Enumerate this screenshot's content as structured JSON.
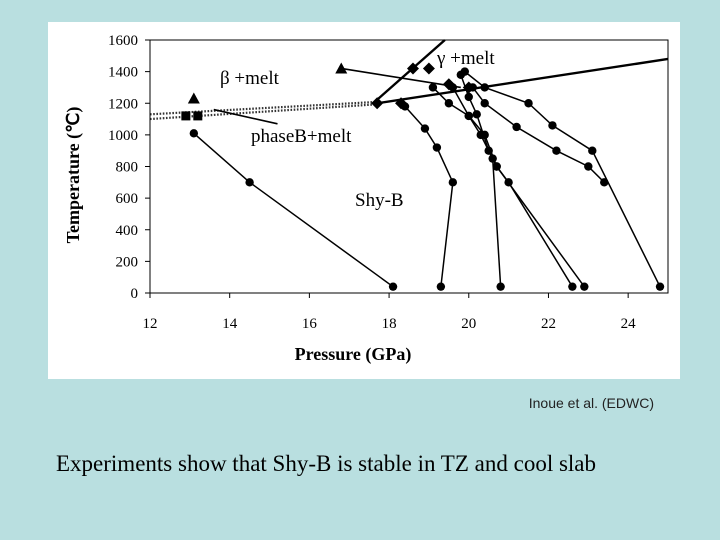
{
  "chart_data": {
    "type": "scatter",
    "title": "",
    "xlabel": "Pressure (GPa)",
    "ylabel": "Temperature (℃)",
    "xlim": [
      12,
      25
    ],
    "ylim": [
      0,
      1600
    ],
    "x_ticks": [
      "12",
      "14",
      "16",
      "18",
      "20",
      "22",
      "24"
    ],
    "y_ticks": [
      "0",
      "200",
      "400",
      "600",
      "800",
      "1000",
      "1200",
      "1400",
      "1600"
    ],
    "region_labels": {
      "beta_melt": "β +melt",
      "gamma_melt": "γ +melt",
      "phaseB_melt": "phaseB+melt",
      "shy_b": "Shy-B"
    },
    "series": [
      {
        "name": "path-1",
        "marker": "circle",
        "x": [
          13.1,
          14.5,
          18.1
        ],
        "y": [
          1010,
          700,
          40
        ]
      },
      {
        "name": "path-2",
        "marker": "circle",
        "x": [
          18.4,
          18.9,
          19.2,
          19.6,
          19.3
        ],
        "y": [
          1180,
          1040,
          920,
          700,
          40
        ]
      },
      {
        "name": "path-3",
        "marker": "circle",
        "x": [
          19.1,
          19.5,
          20.0,
          20.3,
          20.6,
          20.8
        ],
        "y": [
          1300,
          1200,
          1120,
          1000,
          850,
          40
        ]
      },
      {
        "name": "path-4",
        "marker": "circle",
        "x": [
          19.6,
          20.0,
          20.4,
          20.7,
          21.0,
          22.6
        ],
        "y": [
          1300,
          1120,
          1000,
          800,
          700,
          40
        ]
      },
      {
        "name": "path-5",
        "marker": "circle",
        "x": [
          19.8,
          20.0,
          20.2,
          20.5,
          20.7,
          22.9
        ],
        "y": [
          1380,
          1240,
          1130,
          900,
          800,
          40
        ]
      },
      {
        "name": "path-6",
        "marker": "circle",
        "x": [
          19.9,
          20.4,
          21.5,
          22.1,
          23.1,
          24.8
        ],
        "y": [
          1400,
          1300,
          1200,
          1060,
          900,
          40
        ]
      },
      {
        "name": "path-7",
        "marker": "circle",
        "x": [
          20.1,
          20.4,
          21.2,
          22.2,
          23.0,
          23.4
        ],
        "y": [
          1300,
          1200,
          1050,
          900,
          800,
          700
        ]
      },
      {
        "name": "phase-B-melt-points",
        "marker": "square",
        "x": [
          12.9,
          13.2
        ],
        "y": [
          1120,
          1120
        ]
      },
      {
        "name": "beta-melt-points",
        "marker": "triangle",
        "x": [
          13.1,
          16.8
        ],
        "y": [
          1230,
          1420
        ]
      },
      {
        "name": "gamma-melt-points",
        "marker": "diamond",
        "x": [
          17.7,
          18.3,
          18.6,
          19.0,
          19.5,
          20.0
        ],
        "y": [
          1200,
          1200,
          1420,
          1420,
          1320,
          1300
        ]
      }
    ],
    "boundaries": [
      {
        "name": "upper-phase-boundary",
        "style": "solid",
        "x": [
          17.7,
          25.0
        ],
        "y": [
          1200,
          1480
        ]
      },
      {
        "name": "steep-phase-boundary",
        "style": "solid",
        "x": [
          17.6,
          19.4
        ],
        "y": [
          1200,
          1600
        ]
      },
      {
        "name": "dotted-boundary-1",
        "style": "dotted",
        "x": [
          12.0,
          17.8
        ],
        "y": [
          1130,
          1210
        ]
      },
      {
        "name": "dotted-boundary-2",
        "style": "dotted",
        "x": [
          12.0,
          17.8
        ],
        "y": [
          1100,
          1195
        ]
      },
      {
        "name": "beta-triangle-line",
        "style": "solid",
        "x": [
          16.8,
          19.8
        ],
        "y": [
          1420,
          1300
        ]
      },
      {
        "name": "phase-b-leader-line",
        "style": "solid",
        "x": [
          13.6,
          15.2
        ],
        "y": [
          1160,
          1070
        ]
      }
    ]
  },
  "credit": "Inoue et al. (EDWC)",
  "caption": "Experiments show that Shy-B is stable in TZ and cool slab"
}
